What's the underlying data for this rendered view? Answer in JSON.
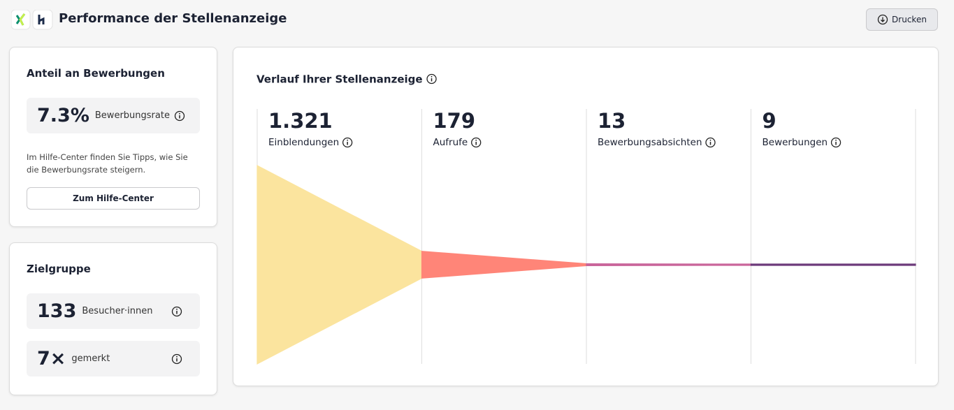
{
  "header": {
    "title": "Performance der Stellenanzeige",
    "print_button": "Drucken"
  },
  "share_card": {
    "title": "Anteil an Bewerbungen",
    "rate": "7.3%",
    "rate_caption": "Bewerbungsrate",
    "help_text": "Im Hilfe-Center finden Sie Tipps, wie Sie die Bewerbungsrate steigern.",
    "button": "Zum Hilfe-Center"
  },
  "audience_card": {
    "title": "Zielgruppe",
    "stats": [
      {
        "value": 133,
        "caption": "Besucher·innen"
      },
      {
        "value": "7×",
        "caption": "gemerkt"
      }
    ]
  },
  "chart_data": {
    "type": "funnel",
    "title": "Verlauf Ihrer Stellenanzeige",
    "categories": [
      "Einblendungen",
      "Aufrufe",
      "Bewerbungsabsichten",
      "Bewerbungen"
    ],
    "values": [
      1321,
      179,
      13,
      9
    ],
    "value_labels": [
      "1.321",
      "179",
      "13",
      "9"
    ],
    "colors": [
      "#fbe49e",
      "#ff8578",
      "#c9659a",
      "#6d3a7a"
    ]
  }
}
